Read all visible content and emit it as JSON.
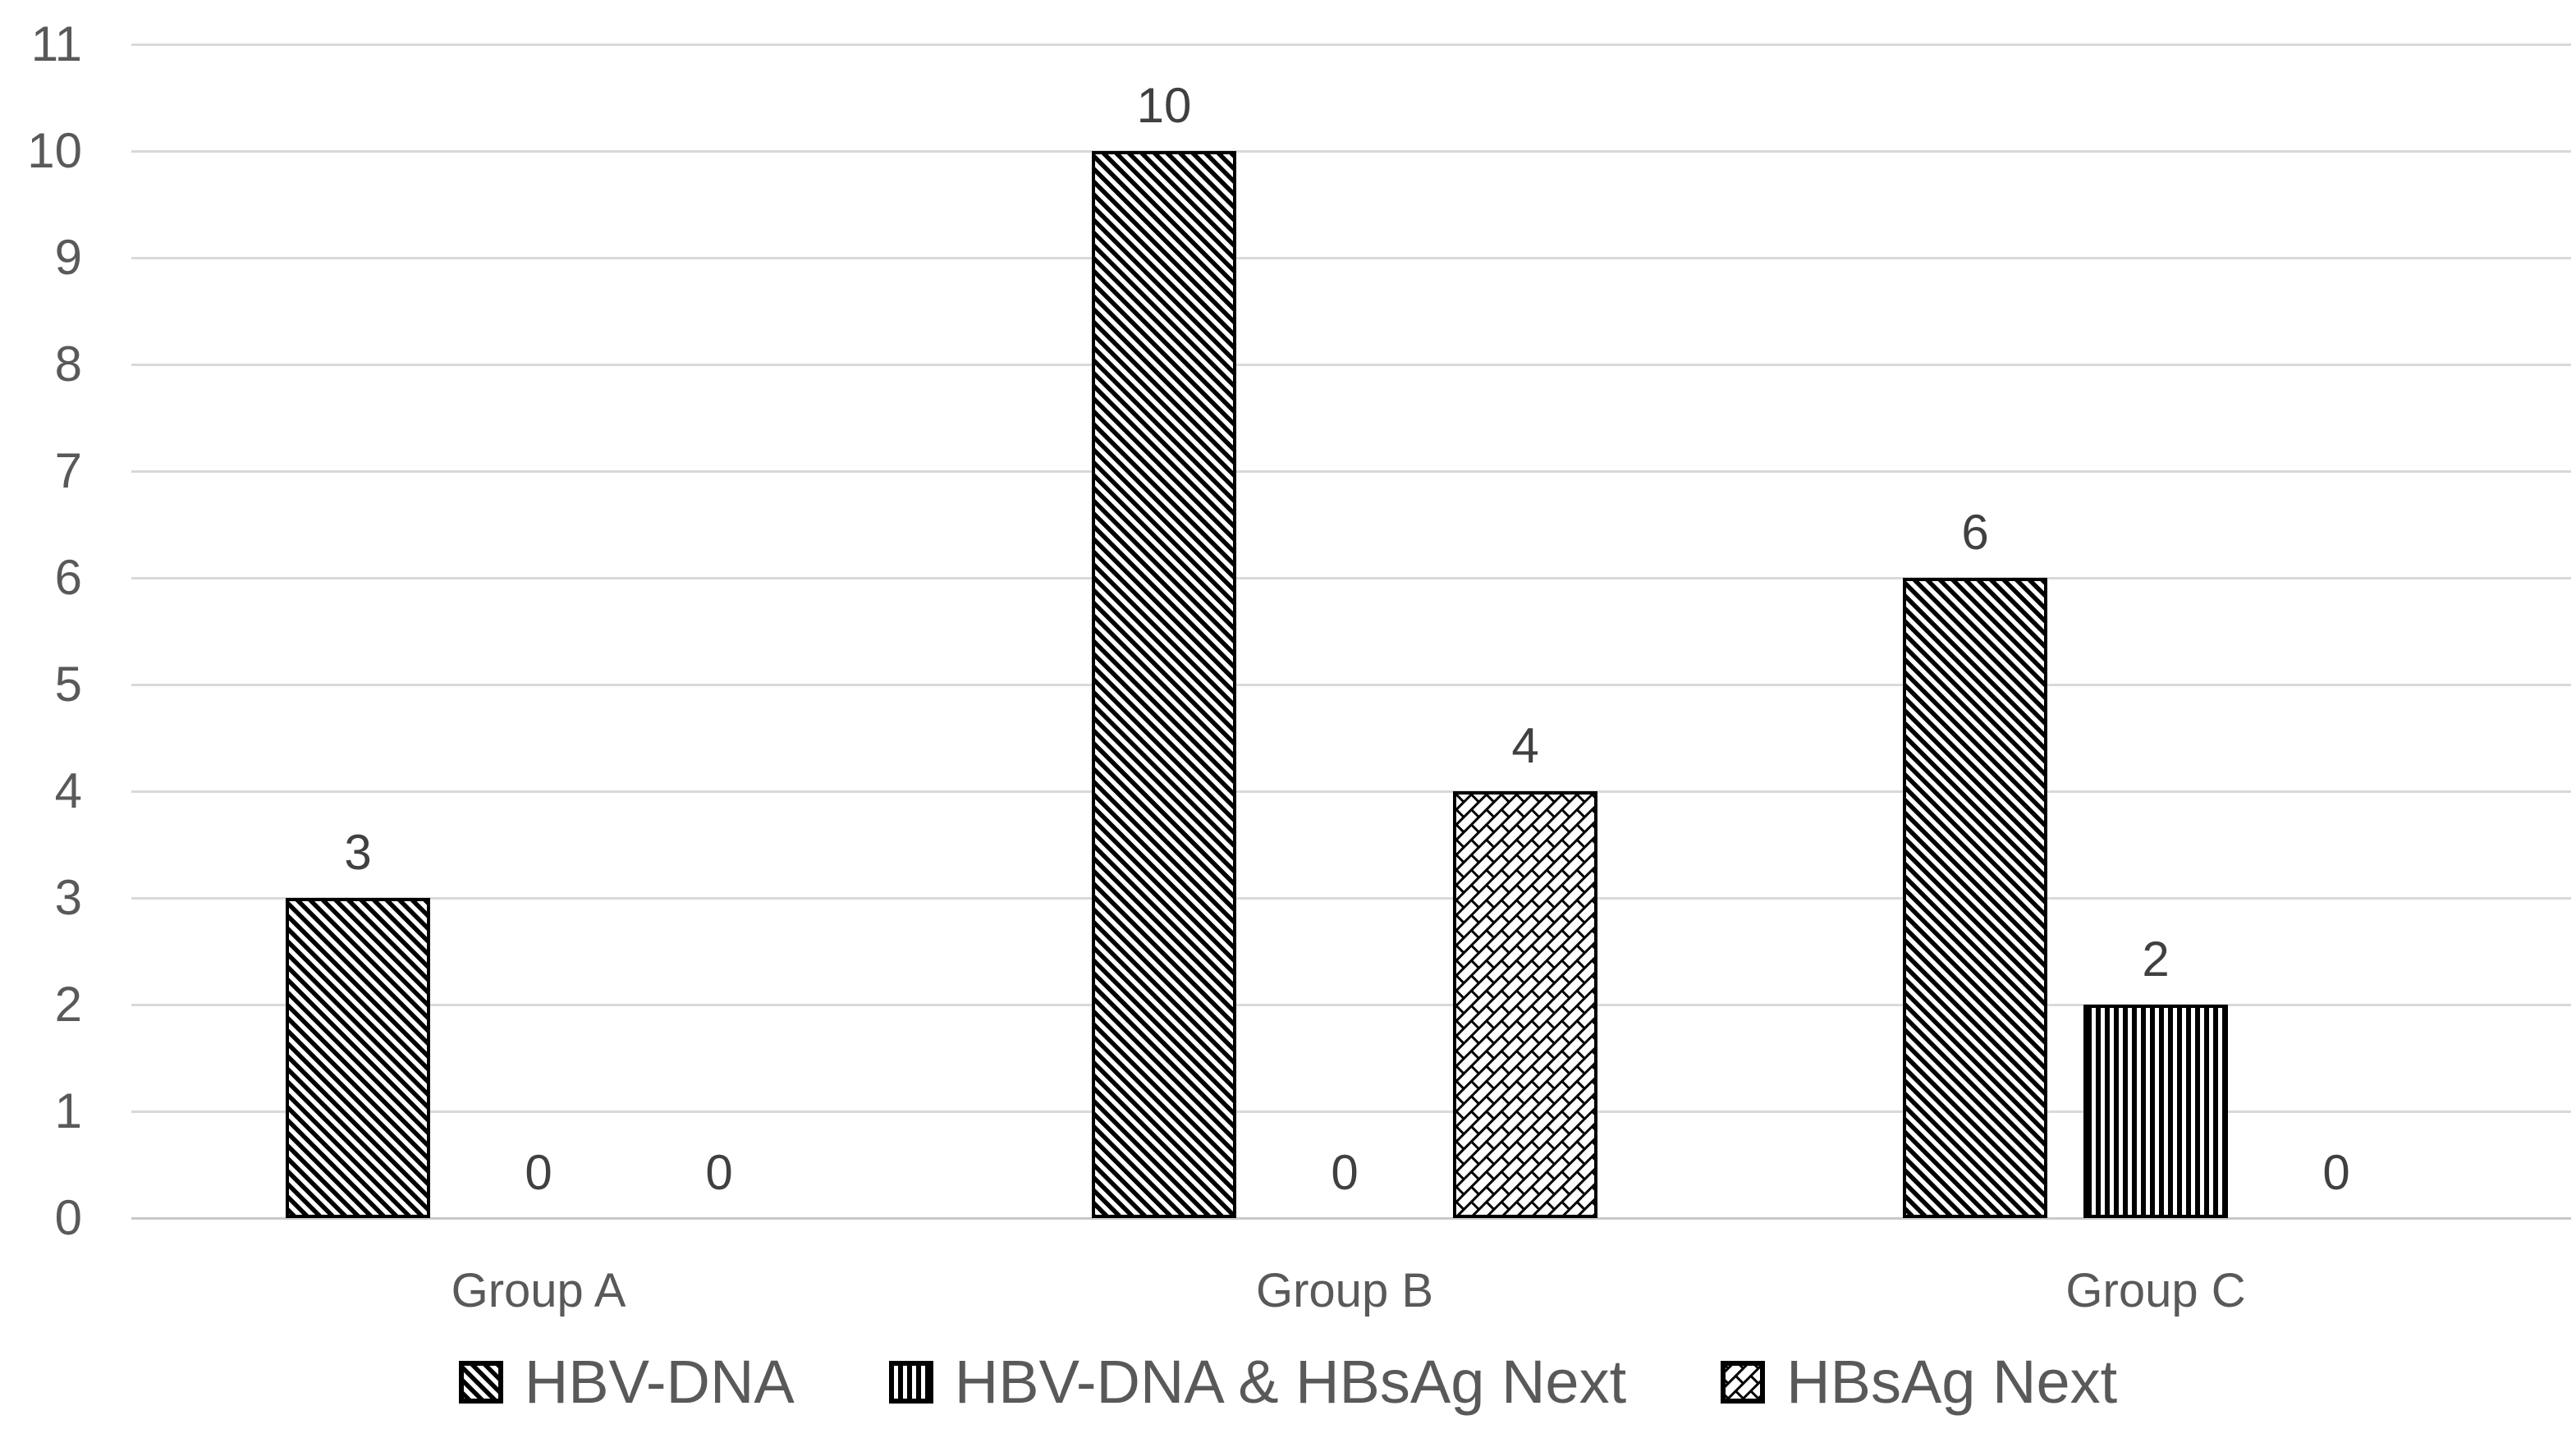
{
  "chart_data": {
    "type": "bar",
    "title": "",
    "xlabel": "",
    "ylabel": "",
    "categories": [
      "Group A",
      "Group B",
      "Group C"
    ],
    "series": [
      {
        "name": "HBV-DNA",
        "pattern": "diagonal-hatch",
        "values": [
          3,
          10,
          6
        ]
      },
      {
        "name": "HBV-DNA & HBsAg Next",
        "pattern": "vertical-stripes",
        "values": [
          0,
          0,
          2
        ]
      },
      {
        "name": "HBsAg Next",
        "pattern": "diagonal-brick",
        "values": [
          0,
          4,
          0
        ]
      }
    ],
    "data_labels_shown": true,
    "ylim": [
      0,
      11
    ],
    "ytick_step": 1,
    "yticks": [
      0,
      1,
      2,
      3,
      4,
      5,
      6,
      7,
      8,
      9,
      10,
      11
    ],
    "grid": true,
    "legend_position": "bottom"
  },
  "colors": {
    "background": "#ffffff",
    "pattern_ink": "#000000",
    "pattern_bg": "#ffffff",
    "gridline": "#d9d9d9",
    "axis_line": "#c9c9c9",
    "tick_text": "#595959",
    "data_label_text": "#404040",
    "category_text": "#595959",
    "legend_text": "#595959"
  }
}
